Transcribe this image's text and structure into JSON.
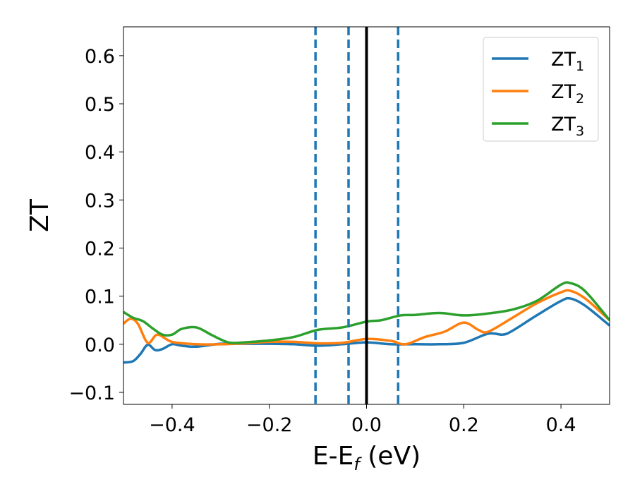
{
  "chart_data": {
    "type": "line",
    "xlabel_main": "E-E",
    "xlabel_sub": "f",
    "xlabel_unit": " (eV)",
    "ylabel": "ZT",
    "xlim": [
      -0.5,
      0.5
    ],
    "ylim": [
      -0.125,
      0.66
    ],
    "xticks": [
      -0.4,
      -0.2,
      0.0,
      0.2,
      0.4
    ],
    "xtick_labels": [
      "−0.4",
      "−0.2",
      "0.0",
      "0.2",
      "0.4"
    ],
    "yticks": [
      -0.1,
      0.0,
      0.1,
      0.2,
      0.3,
      0.4,
      0.5,
      0.6
    ],
    "ytick_labels": [
      "−0.1",
      "0.0",
      "0.1",
      "0.2",
      "0.3",
      "0.4",
      "0.5",
      "0.6"
    ],
    "grid": false,
    "legend_position": "top-right",
    "vlines": [
      {
        "x": 0.0,
        "style": "solid",
        "color": "#000000"
      },
      {
        "x": -0.105,
        "style": "dashed",
        "color": "#1f77b4"
      },
      {
        "x": -0.037,
        "style": "dashed",
        "color": "#1f77b4"
      },
      {
        "x": 0.065,
        "style": "dashed",
        "color": "#1f77b4"
      }
    ],
    "series": [
      {
        "name": "ZT",
        "name_sub": "1",
        "color": "#1f77b4",
        "x": [
          -0.5,
          -0.48,
          -0.465,
          -0.45,
          -0.435,
          -0.42,
          -0.4,
          -0.38,
          -0.35,
          -0.3,
          -0.25,
          -0.2,
          -0.15,
          -0.1,
          -0.05,
          0.0,
          0.05,
          0.1,
          0.15,
          0.2,
          0.25,
          0.28,
          0.3,
          0.35,
          0.4,
          0.42,
          0.45,
          0.5
        ],
        "y": [
          -0.038,
          -0.035,
          -0.02,
          -0.001,
          -0.012,
          -0.01,
          0.0,
          -0.003,
          -0.005,
          0.001,
          0.001,
          0.001,
          0.0,
          -0.003,
          0.0,
          0.004,
          0.0,
          0.0,
          0.0,
          0.003,
          0.022,
          0.02,
          0.028,
          0.06,
          0.09,
          0.095,
          0.08,
          0.039
        ]
      },
      {
        "name": "ZT",
        "name_sub": "2",
        "color": "#ff7f0e",
        "x": [
          -0.5,
          -0.485,
          -0.47,
          -0.45,
          -0.43,
          -0.4,
          -0.35,
          -0.3,
          -0.25,
          -0.2,
          -0.15,
          -0.1,
          -0.05,
          0.0,
          0.05,
          0.08,
          0.12,
          0.16,
          0.2,
          0.23,
          0.25,
          0.3,
          0.35,
          0.4,
          0.42,
          0.45,
          0.5
        ],
        "y": [
          0.043,
          0.053,
          0.042,
          0.003,
          0.02,
          0.005,
          0.0,
          0.0,
          0.002,
          0.005,
          0.005,
          0.002,
          0.003,
          0.011,
          0.007,
          0.0,
          0.015,
          0.026,
          0.045,
          0.03,
          0.026,
          0.055,
          0.085,
          0.108,
          0.111,
          0.095,
          0.05
        ]
      },
      {
        "name": "ZT",
        "name_sub": "3",
        "color": "#2ca02c",
        "x": [
          -0.5,
          -0.48,
          -0.46,
          -0.44,
          -0.42,
          -0.4,
          -0.38,
          -0.35,
          -0.32,
          -0.3,
          -0.28,
          -0.25,
          -0.2,
          -0.15,
          -0.1,
          -0.05,
          0.0,
          0.03,
          0.07,
          0.1,
          0.15,
          0.2,
          0.25,
          0.3,
          0.35,
          0.4,
          0.42,
          0.45,
          0.5
        ],
        "y": [
          0.067,
          0.055,
          0.048,
          0.033,
          0.02,
          0.02,
          0.032,
          0.035,
          0.02,
          0.01,
          0.003,
          0.004,
          0.008,
          0.015,
          0.03,
          0.035,
          0.047,
          0.05,
          0.06,
          0.061,
          0.065,
          0.06,
          0.064,
          0.072,
          0.09,
          0.124,
          0.127,
          0.11,
          0.05
        ]
      }
    ]
  }
}
